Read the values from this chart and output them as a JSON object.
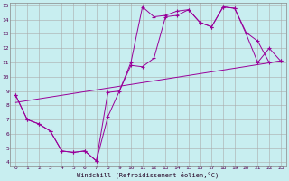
{
  "xlabel": "Windchill (Refroidissement éolien,°C)",
  "bg_color": "#c8eef0",
  "line_color": "#990099",
  "grid_color": "#aaaaaa",
  "xlim": [
    -0.5,
    23.5
  ],
  "ylim": [
    3.8,
    15.2
  ],
  "xticks": [
    0,
    1,
    2,
    3,
    4,
    5,
    6,
    7,
    8,
    9,
    10,
    11,
    12,
    13,
    14,
    15,
    16,
    17,
    18,
    19,
    20,
    21,
    22,
    23
  ],
  "yticks": [
    4,
    5,
    6,
    7,
    8,
    9,
    10,
    11,
    12,
    13,
    14,
    15
  ],
  "line1_x": [
    0,
    1,
    2,
    3,
    4,
    5,
    6,
    7,
    8,
    9,
    10,
    11,
    12,
    13,
    14,
    15,
    16,
    17,
    18,
    19,
    20,
    21,
    22,
    23
  ],
  "line1_y": [
    8.7,
    7.0,
    6.7,
    6.2,
    4.8,
    4.7,
    4.8,
    4.1,
    8.9,
    9.0,
    11.0,
    14.9,
    14.2,
    14.3,
    14.6,
    14.7,
    13.8,
    13.5,
    14.9,
    14.8,
    13.1,
    12.5,
    11.0,
    11.1
  ],
  "line2_x": [
    0,
    1,
    2,
    3,
    4,
    5,
    6,
    7,
    8,
    10,
    11,
    12,
    13,
    14,
    15,
    16,
    17,
    18,
    19,
    20,
    21,
    22,
    23
  ],
  "line2_y": [
    8.7,
    7.0,
    6.7,
    6.2,
    4.8,
    4.7,
    4.8,
    4.1,
    7.2,
    10.8,
    10.7,
    11.3,
    14.2,
    14.3,
    14.7,
    13.8,
    13.5,
    14.9,
    14.8,
    13.0,
    11.0,
    12.0,
    11.1
  ],
  "line3_x": [
    0,
    23
  ],
  "line3_y": [
    8.2,
    11.1
  ]
}
